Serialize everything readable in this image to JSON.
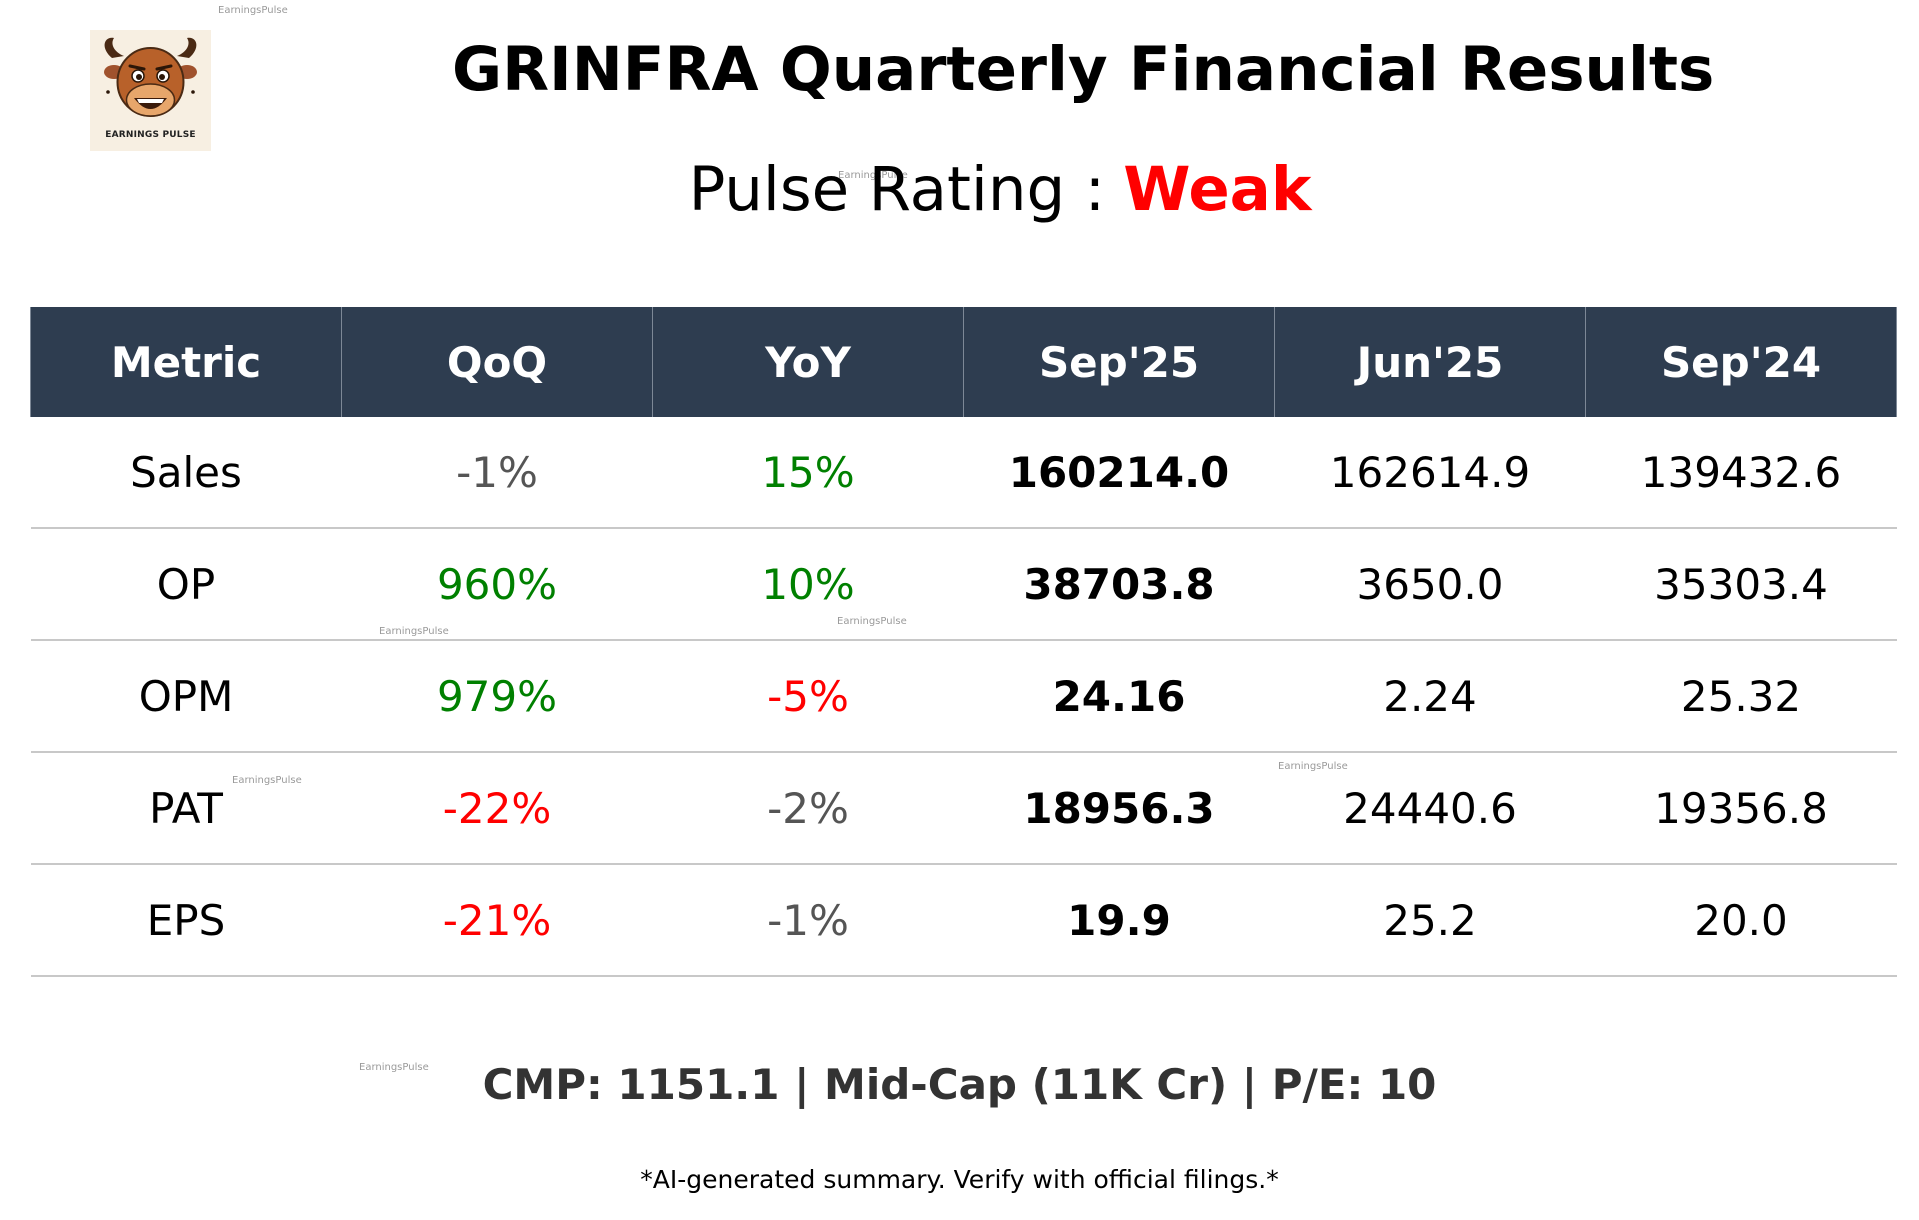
{
  "logo": {
    "icon": "bull-mascot-icon",
    "text": "EARNINGS PULSE"
  },
  "header": {
    "title": "GRINFRA Quarterly Financial Results",
    "rating_label": "Pulse Rating :",
    "rating_value": "Weak",
    "rating_color": "#ff0000"
  },
  "watermark": "EarningsPulse",
  "table": {
    "columns": [
      "Metric",
      "QoQ",
      "YoY",
      "Sep'25",
      "Jun'25",
      "Sep'24"
    ],
    "rows": [
      {
        "metric": "Sales",
        "qoq": "-1%",
        "yoy": "15%",
        "sep25": "160214.0",
        "jun25": "162614.9",
        "sep24": "139432.6"
      },
      {
        "metric": "OP",
        "qoq": "960%",
        "yoy": "10%",
        "sep25": "38703.8",
        "jun25": "3650.0",
        "sep24": "35303.4"
      },
      {
        "metric": "OPM",
        "qoq": "979%",
        "yoy": "-5%",
        "sep25": "24.16",
        "jun25": "2.24",
        "sep24": "25.32"
      },
      {
        "metric": "PAT",
        "qoq": "-22%",
        "yoy": "-2%",
        "sep25": "18956.3",
        "jun25": "24440.6",
        "sep24": "19356.8"
      },
      {
        "metric": "EPS",
        "qoq": "-21%",
        "yoy": "-1%",
        "sep25": "19.9",
        "jun25": "25.2",
        "sep24": "20.0"
      }
    ],
    "colors": {
      "header_bg": "#2e3d50",
      "positive": "#008000",
      "negative": "#ff0000",
      "neutral": "#555555"
    }
  },
  "footer": {
    "stats": "CMP: 1151.1 | Mid-Cap (11K Cr) | P/E: 10",
    "disclaimer": "*AI-generated summary. Verify with official filings.*"
  }
}
